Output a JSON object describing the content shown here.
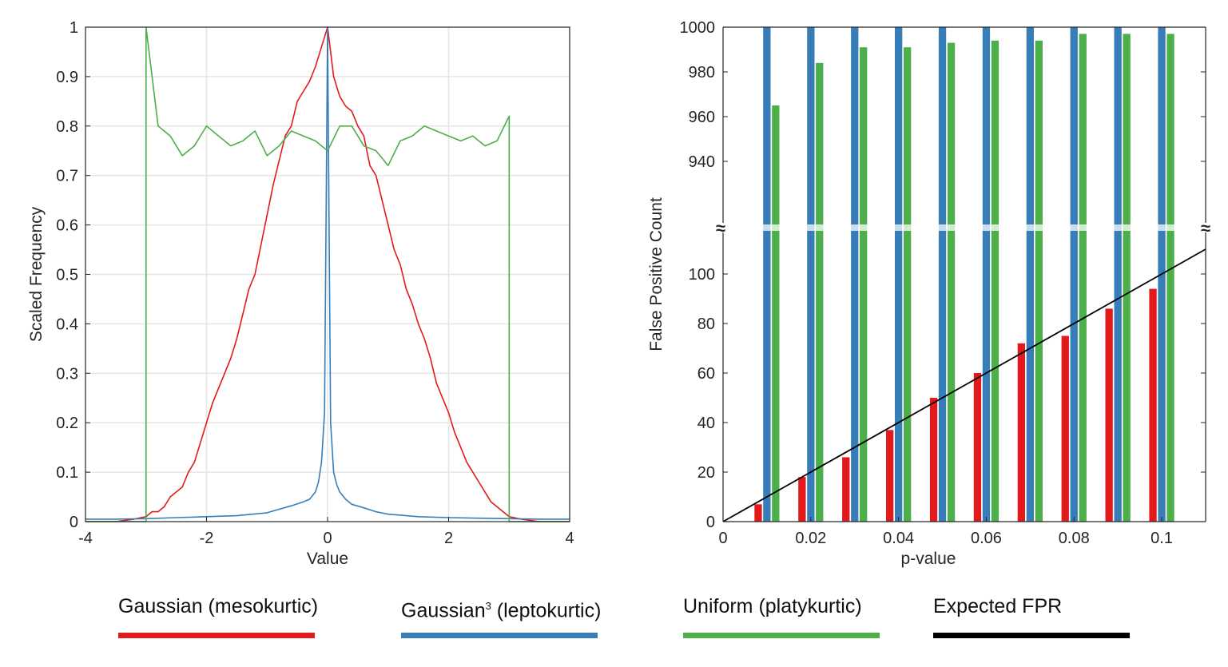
{
  "colors": {
    "gaussian": "#e31a1c",
    "leptokurtic": "#377eb8",
    "uniform": "#4daf4a",
    "expected": "#000000",
    "grid": "#e6e6e6",
    "axis": "#262626"
  },
  "legend": {
    "items": [
      {
        "label": "Gaussian (mesokurtic)",
        "sup": "",
        "suffix": "",
        "color": "#e31a1c"
      },
      {
        "label": "Gaussian",
        "sup": "3",
        "suffix": " (leptokurtic)",
        "color": "#377eb8"
      },
      {
        "label": "Uniform (platykurtic)",
        "sup": "",
        "suffix": "",
        "color": "#4daf4a"
      },
      {
        "label": "Expected FPR",
        "sup": "",
        "suffix": "",
        "color": "#000000"
      }
    ]
  },
  "chart_data": [
    {
      "type": "line",
      "xlabel": "Value",
      "ylabel": "Scaled Frequency",
      "xlim": [
        -4,
        4
      ],
      "ylim": [
        0,
        1
      ],
      "xticks": [
        -4,
        -2,
        0,
        2,
        4
      ],
      "xtick_labels": [
        "-4",
        "-2",
        "0",
        "2",
        "4"
      ],
      "yticks": [
        0,
        0.1,
        0.2,
        0.3,
        0.4,
        0.5,
        0.6,
        0.7,
        0.8,
        0.9,
        1
      ],
      "ytick_labels": [
        "0",
        "0.1",
        "0.2",
        "0.3",
        "0.4",
        "0.5",
        "0.6",
        "0.7",
        "0.8",
        "0.9",
        "1"
      ],
      "grid": true,
      "series": [
        {
          "name": "Gaussian (mesokurtic)",
          "color": "#e31a1c",
          "x": [
            -4,
            -3.5,
            -3.2,
            -3,
            -2.9,
            -2.8,
            -2.7,
            -2.6,
            -2.5,
            -2.4,
            -2.3,
            -2.2,
            -2.1,
            -2,
            -1.9,
            -1.8,
            -1.7,
            -1.6,
            -1.5,
            -1.4,
            -1.3,
            -1.2,
            -1.1,
            -1,
            -0.9,
            -0.8,
            -0.7,
            -0.6,
            -0.5,
            -0.4,
            -0.3,
            -0.2,
            -0.1,
            0,
            0.1,
            0.2,
            0.3,
            0.4,
            0.5,
            0.6,
            0.7,
            0.8,
            0.9,
            1,
            1.1,
            1.2,
            1.3,
            1.4,
            1.5,
            1.6,
            1.7,
            1.8,
            1.9,
            2,
            2.1,
            2.2,
            2.3,
            2.4,
            2.5,
            2.6,
            2.7,
            2.8,
            2.9,
            3,
            3.2,
            3.5,
            4
          ],
          "y": [
            0,
            0,
            0.005,
            0.01,
            0.02,
            0.02,
            0.03,
            0.05,
            0.06,
            0.07,
            0.1,
            0.12,
            0.16,
            0.2,
            0.24,
            0.27,
            0.3,
            0.33,
            0.37,
            0.42,
            0.47,
            0.5,
            0.56,
            0.62,
            0.68,
            0.73,
            0.78,
            0.8,
            0.85,
            0.87,
            0.89,
            0.92,
            0.96,
            1,
            0.9,
            0.86,
            0.84,
            0.83,
            0.8,
            0.78,
            0.72,
            0.7,
            0.65,
            0.6,
            0.55,
            0.52,
            0.47,
            0.44,
            0.4,
            0.37,
            0.33,
            0.28,
            0.25,
            0.22,
            0.18,
            0.15,
            0.12,
            0.1,
            0.08,
            0.06,
            0.04,
            0.03,
            0.02,
            0.01,
            0.005,
            0,
            0
          ]
        },
        {
          "name": "Gaussian³ (leptokurtic)",
          "color": "#377eb8",
          "x": [
            -4,
            -3.5,
            -3,
            -2.5,
            -2,
            -1.5,
            -1,
            -0.8,
            -0.6,
            -0.4,
            -0.3,
            -0.2,
            -0.15,
            -0.1,
            -0.05,
            0,
            0.05,
            0.1,
            0.15,
            0.2,
            0.3,
            0.4,
            0.6,
            0.8,
            1,
            1.5,
            2,
            2.5,
            3,
            3.5,
            4
          ],
          "y": [
            0.005,
            0.005,
            0.006,
            0.008,
            0.01,
            0.012,
            0.018,
            0.025,
            0.032,
            0.04,
            0.045,
            0.06,
            0.08,
            0.12,
            0.22,
            1,
            0.2,
            0.1,
            0.075,
            0.06,
            0.045,
            0.035,
            0.028,
            0.02,
            0.015,
            0.01,
            0.008,
            0.007,
            0.006,
            0.005,
            0.005
          ]
        },
        {
          "name": "Uniform (platykurtic)",
          "color": "#4daf4a",
          "x": [
            -4,
            -3,
            -3,
            -2.8,
            -2.6,
            -2.4,
            -2.2,
            -2,
            -1.8,
            -1.6,
            -1.4,
            -1.2,
            -1,
            -0.8,
            -0.6,
            -0.4,
            -0.2,
            0,
            0.2,
            0.4,
            0.6,
            0.8,
            1,
            1.2,
            1.4,
            1.6,
            1.8,
            2,
            2.2,
            2.4,
            2.6,
            2.8,
            3,
            3,
            4
          ],
          "y": [
            0,
            0,
            1,
            0.8,
            0.78,
            0.74,
            0.76,
            0.8,
            0.78,
            0.76,
            0.77,
            0.79,
            0.74,
            0.76,
            0.79,
            0.78,
            0.77,
            0.75,
            0.8,
            0.8,
            0.76,
            0.75,
            0.72,
            0.77,
            0.78,
            0.8,
            0.79,
            0.78,
            0.77,
            0.78,
            0.76,
            0.77,
            0.82,
            0,
            0
          ]
        }
      ]
    },
    {
      "type": "bar",
      "xlabel": "p-value",
      "ylabel": "False Positive Count",
      "xlim": [
        0,
        0.11
      ],
      "ylim_lower": [
        0,
        110
      ],
      "ylim_upper": [
        920,
        1000
      ],
      "axis_break": true,
      "xticks": [
        0,
        0.02,
        0.04,
        0.06,
        0.08,
        0.1
      ],
      "xtick_labels": [
        "0",
        "0.02",
        "0.04",
        "0.06",
        "0.08",
        "0.1"
      ],
      "yticks_lower": [
        0,
        20,
        40,
        60,
        80,
        100
      ],
      "ytick_labels_lower": [
        "0",
        "20",
        "40",
        "60",
        "80",
        "100"
      ],
      "yticks_upper": [
        940,
        960,
        980,
        1000
      ],
      "ytick_labels_upper": [
        "940",
        "960",
        "980",
        "1000"
      ],
      "break_mark": "≈",
      "grid": false,
      "categories": [
        0.01,
        0.02,
        0.03,
        0.04,
        0.05,
        0.06,
        0.07,
        0.08,
        0.09,
        0.1
      ],
      "series": [
        {
          "name": "Gaussian (mesokurtic)",
          "color": "#e31a1c",
          "values": [
            7,
            18,
            26,
            37,
            50,
            60,
            72,
            75,
            86,
            94
          ]
        },
        {
          "name": "Gaussian³ (leptokurtic)",
          "color": "#377eb8",
          "values": [
            1000,
            1000,
            1000,
            1000,
            1000,
            1000,
            1000,
            1000,
            1000,
            1000
          ]
        },
        {
          "name": "Uniform (platykurtic)",
          "color": "#4daf4a",
          "values": [
            965,
            984,
            991,
            991,
            993,
            994,
            994,
            997,
            997,
            997
          ]
        },
        {
          "name": "Expected FPR",
          "color": "#000000",
          "type": "line",
          "x": [
            0,
            0.11
          ],
          "y": [
            0,
            110
          ]
        }
      ]
    }
  ]
}
